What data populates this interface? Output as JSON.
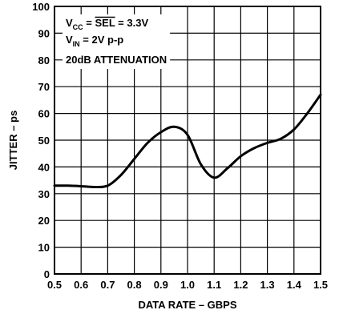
{
  "chart_data": {
    "type": "line",
    "xlabel": "DATA RATE – GBPS",
    "ylabel": "JITTER – ps",
    "xlim": [
      0.5,
      1.5
    ],
    "ylim": [
      0,
      100
    ],
    "x_ticks": [
      "0.5",
      "0.6",
      "0.7",
      "0.8",
      "0.9",
      "1.0",
      "1.1",
      "1.2",
      "1.3",
      "1.4",
      "1.5"
    ],
    "y_ticks": [
      "0",
      "10",
      "20",
      "30",
      "40",
      "50",
      "60",
      "70",
      "80",
      "90",
      "100"
    ],
    "grid": true,
    "annotations": {
      "line1": {
        "pre": "V",
        "sub": "CC",
        "mid": " = ",
        "over": "SEL",
        "post": " = 3.3V"
      },
      "line2": {
        "pre": "V",
        "sub": "IN",
        "post": " = 2V p-p"
      },
      "line3": "20dB ATTENUATION"
    },
    "series": [
      {
        "x": [
          0.5,
          0.55,
          0.6,
          0.65,
          0.7,
          0.75,
          0.8,
          0.85,
          0.9,
          0.95,
          1.0,
          1.05,
          1.1,
          1.15,
          1.2,
          1.25,
          1.3,
          1.35,
          1.4,
          1.45,
          1.5
        ],
        "y": [
          33,
          33,
          32.8,
          32.5,
          33,
          37,
          43,
          49,
          53,
          55,
          52,
          41,
          36,
          39.5,
          44,
          47,
          49,
          50.5,
          54,
          60,
          67
        ]
      }
    ]
  }
}
